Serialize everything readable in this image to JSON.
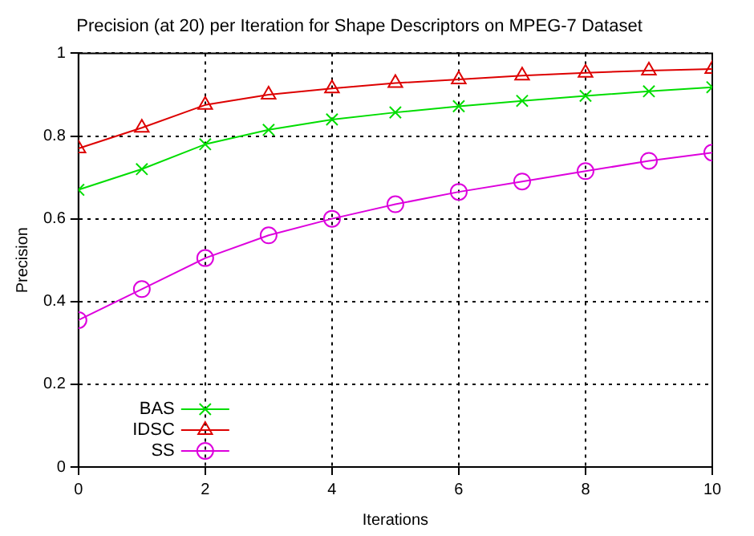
{
  "chart_data": {
    "type": "line",
    "title": "Precision (at 20) per Iteration for Shape Descriptors on MPEG-7 Dataset",
    "xlabel": "Iterations",
    "ylabel": "Precision",
    "x": [
      0,
      1,
      2,
      3,
      4,
      5,
      6,
      7,
      8,
      9,
      10
    ],
    "series": [
      {
        "name": "BAS",
        "color": "#00dd00",
        "marker": "cross",
        "values": [
          0.67,
          0.72,
          0.78,
          0.815,
          0.84,
          0.857,
          0.872,
          0.885,
          0.897,
          0.908,
          0.918
        ]
      },
      {
        "name": "IDSC",
        "color": "#dd0000",
        "marker": "triangle",
        "values": [
          0.77,
          0.82,
          0.875,
          0.9,
          0.915,
          0.928,
          0.937,
          0.946,
          0.953,
          0.958,
          0.962
        ]
      },
      {
        "name": "SS",
        "color": "#dd00dd",
        "marker": "circle",
        "values": [
          0.355,
          0.43,
          0.505,
          0.56,
          0.6,
          0.635,
          0.665,
          0.69,
          0.715,
          0.74,
          0.76
        ]
      }
    ],
    "xlim": [
      0,
      10
    ],
    "xticks": [
      0,
      2,
      4,
      6,
      8,
      10
    ],
    "ylim": [
      0,
      1
    ],
    "yticks": [
      0,
      0.2,
      0.4,
      0.6,
      0.8,
      1
    ],
    "grid": true,
    "legend": "bottom left",
    "line_style": "solid"
  }
}
